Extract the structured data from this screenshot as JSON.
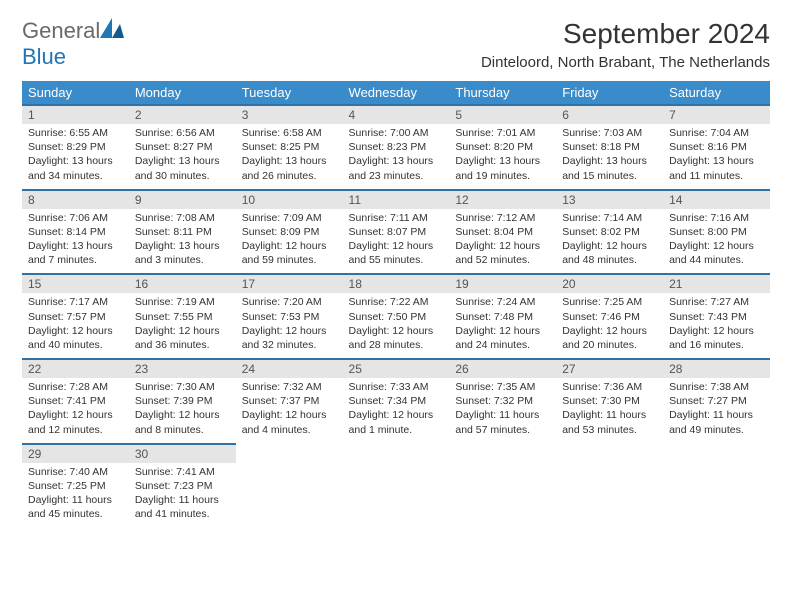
{
  "logo": {
    "word1": "General",
    "word2": "Blue"
  },
  "title": "September 2024",
  "location": "Dinteloord, North Brabant, The Netherlands",
  "colors": {
    "header_bg": "#3a8bc9",
    "header_text": "#ffffff",
    "daybar_bg": "#e5e5e5",
    "daybar_border": "#2f72a8",
    "text": "#333333",
    "logo_gray": "#6a6a6a",
    "logo_blue": "#2176b6"
  },
  "weekday_labels": [
    "Sunday",
    "Monday",
    "Tuesday",
    "Wednesday",
    "Thursday",
    "Friday",
    "Saturday"
  ],
  "weeks": [
    [
      {
        "day": "1",
        "sunrise": "6:55 AM",
        "sunset": "8:29 PM",
        "daylight": "13 hours and 34 minutes."
      },
      {
        "day": "2",
        "sunrise": "6:56 AM",
        "sunset": "8:27 PM",
        "daylight": "13 hours and 30 minutes."
      },
      {
        "day": "3",
        "sunrise": "6:58 AM",
        "sunset": "8:25 PM",
        "daylight": "13 hours and 26 minutes."
      },
      {
        "day": "4",
        "sunrise": "7:00 AM",
        "sunset": "8:23 PM",
        "daylight": "13 hours and 23 minutes."
      },
      {
        "day": "5",
        "sunrise": "7:01 AM",
        "sunset": "8:20 PM",
        "daylight": "13 hours and 19 minutes."
      },
      {
        "day": "6",
        "sunrise": "7:03 AM",
        "sunset": "8:18 PM",
        "daylight": "13 hours and 15 minutes."
      },
      {
        "day": "7",
        "sunrise": "7:04 AM",
        "sunset": "8:16 PM",
        "daylight": "13 hours and 11 minutes."
      }
    ],
    [
      {
        "day": "8",
        "sunrise": "7:06 AM",
        "sunset": "8:14 PM",
        "daylight": "13 hours and 7 minutes."
      },
      {
        "day": "9",
        "sunrise": "7:08 AM",
        "sunset": "8:11 PM",
        "daylight": "13 hours and 3 minutes."
      },
      {
        "day": "10",
        "sunrise": "7:09 AM",
        "sunset": "8:09 PM",
        "daylight": "12 hours and 59 minutes."
      },
      {
        "day": "11",
        "sunrise": "7:11 AM",
        "sunset": "8:07 PM",
        "daylight": "12 hours and 55 minutes."
      },
      {
        "day": "12",
        "sunrise": "7:12 AM",
        "sunset": "8:04 PM",
        "daylight": "12 hours and 52 minutes."
      },
      {
        "day": "13",
        "sunrise": "7:14 AM",
        "sunset": "8:02 PM",
        "daylight": "12 hours and 48 minutes."
      },
      {
        "day": "14",
        "sunrise": "7:16 AM",
        "sunset": "8:00 PM",
        "daylight": "12 hours and 44 minutes."
      }
    ],
    [
      {
        "day": "15",
        "sunrise": "7:17 AM",
        "sunset": "7:57 PM",
        "daylight": "12 hours and 40 minutes."
      },
      {
        "day": "16",
        "sunrise": "7:19 AM",
        "sunset": "7:55 PM",
        "daylight": "12 hours and 36 minutes."
      },
      {
        "day": "17",
        "sunrise": "7:20 AM",
        "sunset": "7:53 PM",
        "daylight": "12 hours and 32 minutes."
      },
      {
        "day": "18",
        "sunrise": "7:22 AM",
        "sunset": "7:50 PM",
        "daylight": "12 hours and 28 minutes."
      },
      {
        "day": "19",
        "sunrise": "7:24 AM",
        "sunset": "7:48 PM",
        "daylight": "12 hours and 24 minutes."
      },
      {
        "day": "20",
        "sunrise": "7:25 AM",
        "sunset": "7:46 PM",
        "daylight": "12 hours and 20 minutes."
      },
      {
        "day": "21",
        "sunrise": "7:27 AM",
        "sunset": "7:43 PM",
        "daylight": "12 hours and 16 minutes."
      }
    ],
    [
      {
        "day": "22",
        "sunrise": "7:28 AM",
        "sunset": "7:41 PM",
        "daylight": "12 hours and 12 minutes."
      },
      {
        "day": "23",
        "sunrise": "7:30 AM",
        "sunset": "7:39 PM",
        "daylight": "12 hours and 8 minutes."
      },
      {
        "day": "24",
        "sunrise": "7:32 AM",
        "sunset": "7:37 PM",
        "daylight": "12 hours and 4 minutes."
      },
      {
        "day": "25",
        "sunrise": "7:33 AM",
        "sunset": "7:34 PM",
        "daylight": "12 hours and 1 minute."
      },
      {
        "day": "26",
        "sunrise": "7:35 AM",
        "sunset": "7:32 PM",
        "daylight": "11 hours and 57 minutes."
      },
      {
        "day": "27",
        "sunrise": "7:36 AM",
        "sunset": "7:30 PM",
        "daylight": "11 hours and 53 minutes."
      },
      {
        "day": "28",
        "sunrise": "7:38 AM",
        "sunset": "7:27 PM",
        "daylight": "11 hours and 49 minutes."
      }
    ],
    [
      {
        "day": "29",
        "sunrise": "7:40 AM",
        "sunset": "7:25 PM",
        "daylight": "11 hours and 45 minutes."
      },
      {
        "day": "30",
        "sunrise": "7:41 AM",
        "sunset": "7:23 PM",
        "daylight": "11 hours and 41 minutes."
      },
      null,
      null,
      null,
      null,
      null
    ]
  ],
  "labels": {
    "sunrise": "Sunrise:",
    "sunset": "Sunset:",
    "daylight": "Daylight:"
  }
}
